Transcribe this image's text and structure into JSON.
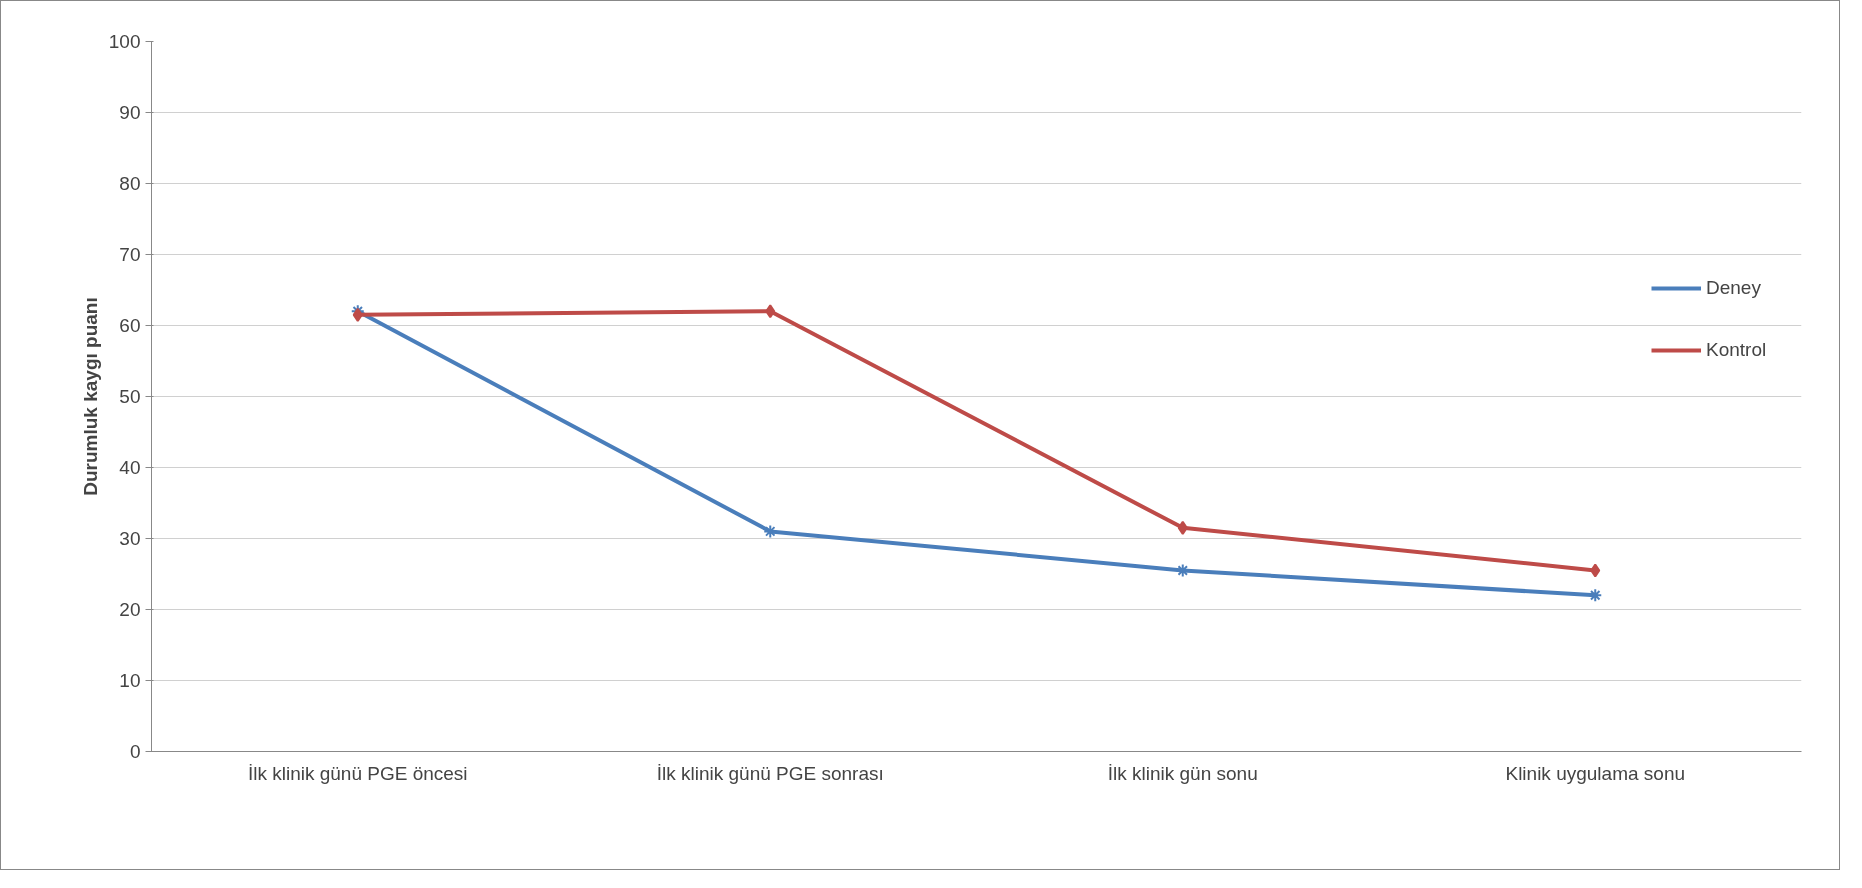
{
  "chart_data": {
    "type": "line",
    "ylabel": "Durumluk kaygı puanı",
    "categories": [
      "İlk klinik günü PGE öncesi",
      "İlk klinik günü PGE sonrası",
      "İlk klinik gün sonu",
      "Klinik uygulama sonu"
    ],
    "series": [
      {
        "name": "Deney",
        "color": "#4a7ebb",
        "values": [
          62,
          31,
          25.5,
          22
        ],
        "marker": "cross"
      },
      {
        "name": "Kontrol",
        "color": "#be4b48",
        "values": [
          61.5,
          62,
          31.5,
          25.5
        ],
        "marker": "diamond"
      }
    ],
    "ylim": [
      0,
      100
    ],
    "yticks": [
      0,
      10,
      20,
      30,
      40,
      50,
      60,
      70,
      80,
      90,
      100
    ],
    "grid": "y",
    "legend": "right",
    "line_style": "solid"
  }
}
